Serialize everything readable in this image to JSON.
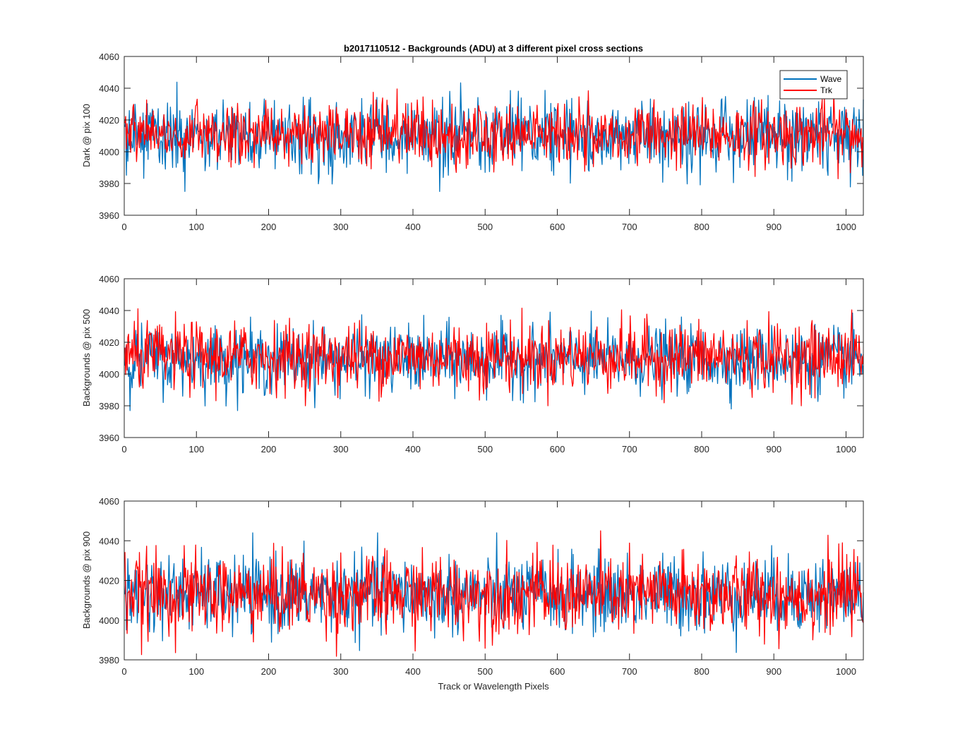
{
  "chart_data": [
    {
      "type": "line",
      "title": "b2017110512 - Backgrounds (ADU) at 3 different pixel cross sections",
      "xlabel": "",
      "ylabel": "Dark @ pix 100",
      "xlim": [
        0,
        1024
      ],
      "ylim": [
        3960,
        4060
      ],
      "xticks": [
        0,
        100,
        200,
        300,
        400,
        500,
        600,
        700,
        800,
        900,
        1000
      ],
      "yticks": [
        3960,
        3980,
        4000,
        4020,
        4040,
        4060
      ],
      "grid": false,
      "legend": {
        "placement": "top-right",
        "entries": [
          "Wave",
          "Trk"
        ]
      },
      "series": [
        {
          "name": "Wave",
          "color": "#0072BD",
          "x_range": [
            1,
            1024
          ],
          "mean": 4010,
          "approx_min": 3975,
          "approx_max": 4049
        },
        {
          "name": "Trk",
          "color": "#FF0000",
          "x_range": [
            1,
            1024
          ],
          "mean": 4011,
          "approx_min": 3983,
          "approx_max": 4049
        }
      ]
    },
    {
      "type": "line",
      "title": "",
      "xlabel": "",
      "ylabel": "Backgrounds @ pix 500",
      "xlim": [
        0,
        1024
      ],
      "ylim": [
        3960,
        4060
      ],
      "xticks": [
        0,
        100,
        200,
        300,
        400,
        500,
        600,
        700,
        800,
        900,
        1000
      ],
      "yticks": [
        3960,
        3980,
        4000,
        4020,
        4040,
        4060
      ],
      "grid": false,
      "series": [
        {
          "name": "Wave",
          "color": "#0072BD",
          "x_range": [
            1,
            1024
          ],
          "mean": 4009,
          "approx_min": 3977,
          "approx_max": 4044
        },
        {
          "name": "Trk",
          "color": "#FF0000",
          "x_range": [
            1,
            1024
          ],
          "mean": 4011,
          "approx_min": 3980,
          "approx_max": 4050
        }
      ]
    },
    {
      "type": "line",
      "title": "",
      "xlabel": "Track or Wavelength Pixels",
      "ylabel": "Backgrounds @ pix 900",
      "xlim": [
        0,
        1024
      ],
      "ylim": [
        3980,
        4060
      ],
      "xticks": [
        0,
        100,
        200,
        300,
        400,
        500,
        600,
        700,
        800,
        900,
        1000
      ],
      "yticks": [
        3980,
        4000,
        4020,
        4040,
        4060
      ],
      "grid": false,
      "series": [
        {
          "name": "Wave",
          "color": "#0072BD",
          "x_range": [
            1,
            1024
          ],
          "mean": 4013,
          "approx_min": 3982,
          "approx_max": 4044
        },
        {
          "name": "Trk",
          "color": "#FF0000",
          "x_range": [
            1,
            1024
          ],
          "mean": 4013,
          "approx_min": 3980,
          "approx_max": 4045
        }
      ]
    }
  ]
}
